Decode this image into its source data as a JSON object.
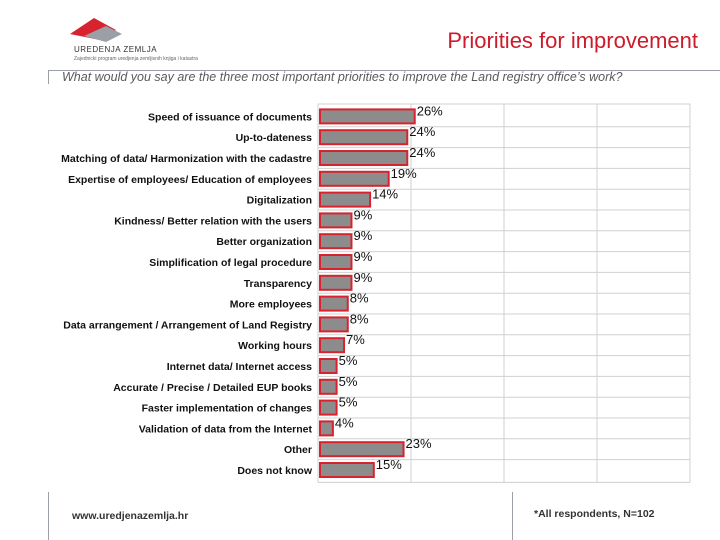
{
  "header": {
    "logo_name": "UREDENJA ZEMLJA",
    "logo_tagline": "Zajednicki program uredjenja zemljisnih knjiga i katastra",
    "title": "Priorities for improvement",
    "subtitle": "What would you say are the three most important priorities to improve the Land registry office’s work?"
  },
  "colors": {
    "title": "#cc1b2b",
    "bar_fill": "#8c8c8c",
    "bar_border": "#d8232f",
    "grid": "#d0d0d0"
  },
  "chart_data": {
    "type": "bar",
    "orientation": "horizontal",
    "categories": [
      "Speed of issuance of documents",
      "Up-to-dateness",
      "Matching of data/ Harmonization with the cadastre",
      "Expertise of employees/ Education of employees",
      "Digitalization",
      "Kindness/ Better relation with the users",
      "Better organization",
      "Simplification of legal procedure",
      "Transparency",
      "More employees",
      "Data arrangement / Arrangement of Land Registry",
      "Working hours",
      "Internet data/ Internet access",
      "Accurate / Precise / Detailed EUP books",
      "Faster implementation of changes",
      "Validation of data from the Internet",
      "Other",
      "Does not know"
    ],
    "values": [
      26,
      24,
      24,
      19,
      14,
      9,
      9,
      9,
      9,
      8,
      8,
      7,
      5,
      5,
      5,
      4,
      23,
      15
    ],
    "value_labels": [
      "26%",
      "24%",
      "24%",
      "19%",
      "14%",
      "9%",
      "9%",
      "9%",
      "9%",
      "8%",
      "8%",
      "7%",
      "5%",
      "5%",
      "5%",
      "4%",
      "23%",
      "15%"
    ],
    "xlim": [
      0,
      100
    ],
    "grid": true
  },
  "footer": {
    "url": "www.uredjenazemlja.hr",
    "note": "*All respondents, N=102"
  }
}
